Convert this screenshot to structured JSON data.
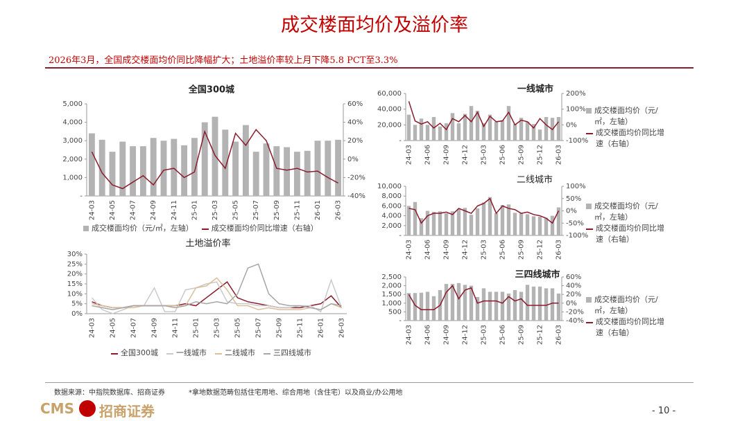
{
  "header": {
    "title": "成交楼面均价及溢价率",
    "subtitle": "2026年3月，全国成交楼面均价同比降幅扩大；土地溢价率较上月下降5.8 PCT至3.3%"
  },
  "footer": {
    "source": "数据来源：中指院数据库、招商证券",
    "note": "*拿地数据范畴包括住宅用地、综合用地（含住宅）以及商业/办公用地",
    "logo_en": "CMS",
    "logo_cn": "招商证券",
    "page": "- 10 -"
  },
  "chart_data": [
    {
      "type": "bar_line",
      "title": "全国300城",
      "categories": [
        "24-03",
        null,
        "24-05",
        null,
        "24-07",
        null,
        "24-09",
        null,
        "24-11",
        null,
        "25-01",
        null,
        "25-03",
        null,
        "25-05",
        null,
        "25-07",
        null,
        "25-09",
        null,
        "25-11",
        null,
        "26-01",
        null,
        "26-03"
      ],
      "series": [
        {
          "name": "成交楼面均价（元/㎡，左轴）",
          "color": "#b3b3b3",
          "values": [
            3400,
            3050,
            2400,
            2950,
            2700,
            2700,
            3150,
            3000,
            3100,
            2750,
            3150,
            4000,
            4300,
            3600,
            2950,
            3850,
            2400,
            2850,
            2700,
            2650,
            2400,
            2450,
            3000,
            3000,
            3050
          ]
        },
        {
          "name": "成交楼面均价同比增速（右轴）",
          "color": "#8b1a2b",
          "axis": "y2",
          "values": [
            8,
            -15,
            -28,
            -32,
            -25,
            -18,
            -28,
            -12,
            -10,
            -20,
            -14,
            30,
            4,
            -10,
            28,
            15,
            32,
            20,
            -10,
            -12,
            -10,
            -14,
            -13,
            -20,
            -26
          ]
        }
      ],
      "ylim": [
        0,
        5000
      ],
      "yticks": [
        {
          "value": 0,
          "label": "-"
        },
        {
          "value": 1000,
          "label": "1,000"
        },
        {
          "value": 2000,
          "label": "2,000"
        },
        {
          "value": 3000,
          "label": "3,000"
        },
        {
          "value": 4000,
          "label": "4,000"
        },
        {
          "value": 5000,
          "label": "5,000"
        }
      ],
      "y2lim": [
        -40,
        60
      ],
      "y2ticks": [
        {
          "value": -40,
          "label": "-40%"
        },
        {
          "value": -20,
          "label": "-20%"
        },
        {
          "value": 0,
          "label": "0%"
        },
        {
          "value": 20,
          "label": "20%"
        },
        {
          "value": 40,
          "label": "40%"
        },
        {
          "value": 60,
          "label": "60%"
        }
      ]
    },
    {
      "type": "bar_line",
      "title": "一线城市",
      "categories": [
        "24-03",
        null,
        null,
        "24-06",
        null,
        null,
        "24-09",
        null,
        null,
        "24-12",
        null,
        null,
        "25-03",
        null,
        null,
        "25-06",
        null,
        null,
        "25-09",
        null,
        null,
        "25-12",
        null,
        null,
        "26-03"
      ],
      "series": [
        {
          "name": "成交楼面均价（元/㎡，左轴）",
          "color": "#b3b3b3",
          "values": [
            33000,
            20000,
            28000,
            20000,
            30000,
            18000,
            22000,
            35000,
            22000,
            34000,
            44000,
            38000,
            22000,
            33000,
            24000,
            26000,
            44000,
            21000,
            29000,
            24000,
            21000,
            14000,
            30000,
            29000,
            30000
          ]
        },
        {
          "name": "成交楼面均价同比增速（右轴）",
          "color": "#8b1a2b",
          "axis": "y2",
          "values": [
            150,
            25,
            5,
            20,
            -20,
            10,
            -30,
            40,
            20,
            60,
            20,
            80,
            -10,
            55,
            20,
            25,
            80,
            0,
            30,
            20,
            -20,
            40,
            0,
            -30,
            20
          ]
        }
      ],
      "ylim": [
        0,
        60000
      ],
      "yticks": [
        {
          "value": 0,
          "label": "-"
        },
        {
          "value": 20000,
          "label": "20,000"
        },
        {
          "value": 40000,
          "label": "40,000"
        },
        {
          "value": 60000,
          "label": "60,000"
        }
      ],
      "y2lim": [
        -100,
        200
      ],
      "y2ticks": [
        {
          "value": -100,
          "label": "-100%"
        },
        {
          "value": 0,
          "label": "0%"
        },
        {
          "value": 100,
          "label": "100%"
        },
        {
          "value": 200,
          "label": "200%"
        }
      ]
    },
    {
      "type": "bar_line",
      "title": "二线城市",
      "categories": [
        "24-03",
        null,
        null,
        "24-06",
        null,
        null,
        "24-09",
        null,
        null,
        "24-12",
        null,
        null,
        "25-03",
        null,
        null,
        "25-06",
        null,
        null,
        "25-09",
        null,
        null,
        "25-12",
        null,
        null,
        "26-03"
      ],
      "series": [
        {
          "name": "成交楼面均价（元/㎡，左轴）",
          "color": "#b3b3b3",
          "values": [
            6000,
            6800,
            3500,
            5000,
            4800,
            4900,
            4500,
            4900,
            5400,
            5600,
            4200,
            5500,
            6700,
            7800,
            4500,
            6200,
            6300,
            4600,
            4500,
            4300,
            3900,
            3800,
            3600,
            4000,
            5700
          ]
        },
        {
          "name": "成交楼面均价同比增速（右轴）",
          "color": "#8b1a2b",
          "axis": "y2",
          "values": [
            10,
            5,
            -50,
            -20,
            -10,
            -10,
            -5,
            -15,
            10,
            0,
            -10,
            20,
            30,
            50,
            -10,
            20,
            10,
            5,
            -10,
            -5,
            -15,
            -20,
            -30,
            -50,
            0
          ]
        }
      ],
      "ylim": [
        0,
        10000
      ],
      "yticks": [
        {
          "value": 0,
          "label": "-"
        },
        {
          "value": 2000,
          "label": "2,000"
        },
        {
          "value": 4000,
          "label": "4,000"
        },
        {
          "value": 6000,
          "label": "6,000"
        },
        {
          "value": 8000,
          "label": "8,000"
        },
        {
          "value": 10000,
          "label": "10,000"
        }
      ],
      "y2lim": [
        -100,
        100
      ],
      "y2ticks": [
        {
          "value": -100,
          "label": "-100%"
        },
        {
          "value": -50,
          "label": "-50%"
        },
        {
          "value": 0,
          "label": "0%"
        },
        {
          "value": 50,
          "label": "50%"
        },
        {
          "value": 100,
          "label": "100%"
        }
      ]
    },
    {
      "type": "bar_line",
      "title": "三四线城市",
      "categories": [
        "24-03",
        null,
        null,
        "24-06",
        null,
        null,
        "24-09",
        null,
        null,
        "24-12",
        null,
        null,
        "25-03",
        null,
        null,
        "25-06",
        null,
        null,
        "25-09",
        null,
        null,
        "25-12",
        null,
        null,
        "26-03"
      ],
      "series": [
        {
          "name": "成交楼面均价（元/㎡，左轴）",
          "color": "#b3b3b3",
          "values": [
            1580,
            1580,
            1600,
            1650,
            1400,
            1750,
            2100,
            2100,
            2150,
            2050,
            2000,
            1350,
            1850,
            1650,
            1650,
            1650,
            1550,
            1750,
            1650,
            2050,
            1950,
            1950,
            1850,
            1850,
            1550
          ]
        },
        {
          "name": "成交楼面均价同比增速（右轴）",
          "color": "#8b1a2b",
          "axis": "y2",
          "values": [
            20,
            -5,
            -15,
            -15,
            -15,
            -5,
            25,
            40,
            10,
            30,
            35,
            0,
            5,
            5,
            5,
            0,
            15,
            5,
            10,
            -5,
            -5,
            -5,
            -5,
            0,
            0
          ]
        }
      ],
      "ylim": [
        0,
        2500
      ],
      "yticks": [
        {
          "value": 0,
          "label": "-"
        },
        {
          "value": 500,
          "label": "500"
        },
        {
          "value": 1000,
          "label": "1,000"
        },
        {
          "value": 1500,
          "label": "1,500"
        },
        {
          "value": 2000,
          "label": "2,000"
        },
        {
          "value": 2500,
          "label": "2,500"
        }
      ],
      "y2lim": [
        -40,
        60
      ],
      "y2ticks": [
        {
          "value": -40,
          "label": "-40%"
        },
        {
          "value": -20,
          "label": "-20%"
        },
        {
          "value": 0,
          "label": "0%"
        },
        {
          "value": 20,
          "label": "20%"
        },
        {
          "value": 40,
          "label": "40%"
        },
        {
          "value": 60,
          "label": "60%"
        }
      ]
    },
    {
      "type": "line",
      "title": "土地溢价率",
      "categories": [
        "24-03",
        null,
        "24-05",
        null,
        "24-07",
        null,
        "24-09",
        null,
        "24-11",
        null,
        "25-01",
        null,
        "25-03",
        null,
        "25-05",
        null,
        "25-07",
        null,
        "25-09",
        null,
        "25-11",
        null,
        "26-01",
        null,
        "26-03"
      ],
      "series": [
        {
          "name": "全国300城",
          "color": "#8b1a2b",
          "values": [
            6,
            4,
            3,
            3,
            4,
            4,
            4,
            4,
            4,
            5,
            4,
            8,
            12,
            16,
            8,
            6,
            5,
            4,
            3,
            3,
            3,
            4,
            5,
            9,
            3
          ]
        },
        {
          "name": "一线城市",
          "color": "#c9c9c9",
          "values": [
            8,
            2,
            0,
            2,
            4,
            4,
            13,
            1,
            1,
            12,
            13,
            15,
            16,
            6,
            5,
            5,
            4,
            4,
            3,
            3,
            4,
            4,
            1,
            17,
            3
          ]
        },
        {
          "name": "二线城市",
          "color": "#d9bf9c",
          "values": [
            5,
            4,
            3,
            3,
            3,
            4,
            4,
            4,
            4,
            4,
            13,
            14,
            18,
            12,
            4,
            4,
            2,
            3,
            2,
            2,
            2,
            3,
            2,
            5,
            3
          ]
        },
        {
          "name": "三四线城市",
          "color": "#a6a6a6",
          "values": [
            4,
            3,
            2,
            3,
            4,
            4,
            4,
            4,
            3,
            4,
            6,
            5,
            6,
            5,
            10,
            23,
            25,
            10,
            5,
            4,
            4,
            3,
            2,
            5,
            4
          ]
        }
      ],
      "ylim": [
        0,
        30
      ],
      "yticks": [
        {
          "value": 0,
          "label": "0%"
        },
        {
          "value": 5,
          "label": "5%"
        },
        {
          "value": 10,
          "label": "10%"
        },
        {
          "value": 15,
          "label": "15%"
        },
        {
          "value": 20,
          "label": "20%"
        },
        {
          "value": 25,
          "label": "25%"
        },
        {
          "value": 30,
          "label": "30%"
        }
      ]
    }
  ]
}
